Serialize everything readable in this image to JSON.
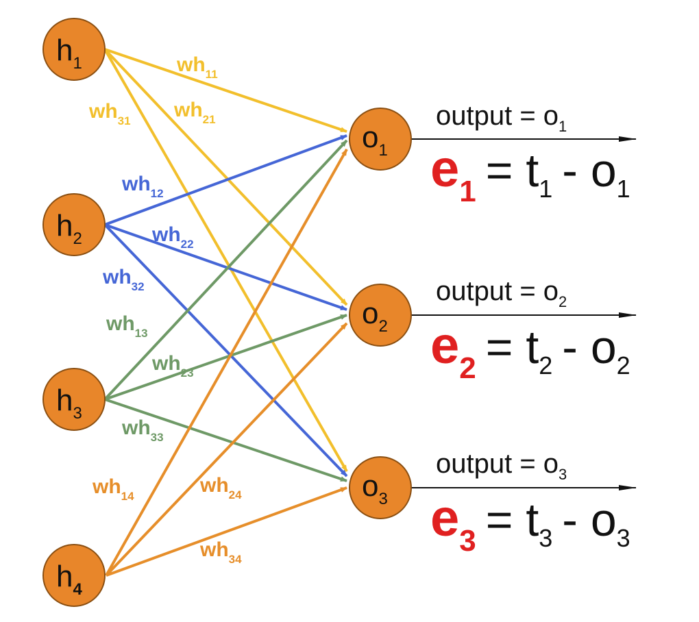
{
  "colors": {
    "node_fill": "#e8862a",
    "h1_edges": "#f2bf2c",
    "h2_edges": "#4566d6",
    "h3_edges": "#6e9966",
    "h4_edges": "#e68e2a",
    "error_e": "#e02020",
    "output_arrow": "#111111"
  },
  "hidden_nodes": [
    {
      "base": "h",
      "sub": "1"
    },
    {
      "base": "h",
      "sub": "2"
    },
    {
      "base": "h",
      "sub": "3"
    },
    {
      "base": "h",
      "sub": "4"
    }
  ],
  "output_nodes": [
    {
      "base": "o",
      "sub": "1"
    },
    {
      "base": "o",
      "sub": "2"
    },
    {
      "base": "o",
      "sub": "3"
    }
  ],
  "weights": [
    {
      "base": "wh",
      "sub": "11"
    },
    {
      "base": "wh",
      "sub": "21"
    },
    {
      "base": "wh",
      "sub": "31"
    },
    {
      "base": "wh",
      "sub": "12"
    },
    {
      "base": "wh",
      "sub": "22"
    },
    {
      "base": "wh",
      "sub": "32"
    },
    {
      "base": "wh",
      "sub": "13"
    },
    {
      "base": "wh",
      "sub": "23"
    },
    {
      "base": "wh",
      "sub": "33"
    },
    {
      "base": "wh",
      "sub": "14"
    },
    {
      "base": "wh",
      "sub": "24"
    },
    {
      "base": "wh",
      "sub": "34"
    }
  ],
  "outputs": [
    {
      "label": "output = o",
      "sub": "1"
    },
    {
      "label": "output = o",
      "sub": "2"
    },
    {
      "label": "output = o",
      "sub": "3"
    }
  ],
  "errors": [
    {
      "e": "e",
      "e_sub": "1",
      "eq": "= t",
      "t_sub": "1",
      "minus": "- o",
      "o_sub": "1"
    },
    {
      "e": "e",
      "e_sub": "2",
      "eq": "= t",
      "t_sub": "2",
      "minus": "- o",
      "o_sub": "2"
    },
    {
      "e": "e",
      "e_sub": "3",
      "eq": "= t",
      "t_sub": "3",
      "minus": "- o",
      "o_sub": "3"
    }
  ]
}
